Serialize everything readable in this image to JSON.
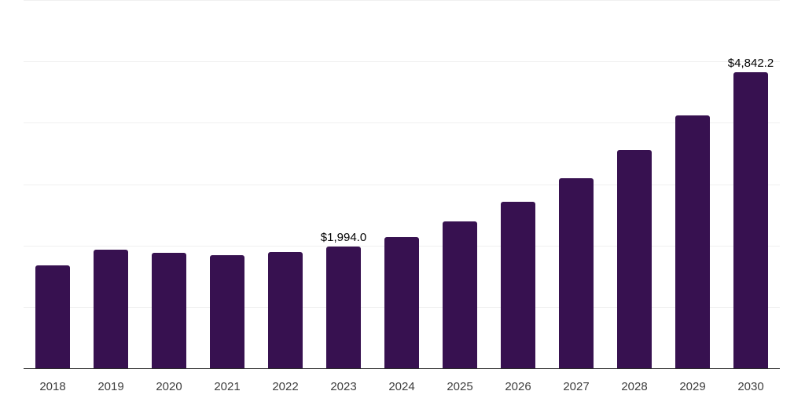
{
  "chart_data": {
    "type": "bar",
    "title": "",
    "xlabel": "",
    "ylabel": "",
    "categories": [
      "2018",
      "2019",
      "2020",
      "2021",
      "2022",
      "2023",
      "2024",
      "2025",
      "2026",
      "2027",
      "2028",
      "2029",
      "2030"
    ],
    "values": [
      1690,
      1945,
      1895,
      1855,
      1905,
      1994.0,
      2150,
      2405,
      2725,
      3110,
      3570,
      4130,
      4842.2
    ],
    "value_labels": {
      "2023": "$1,994.0",
      "2030": "$4,842.2"
    },
    "ylim": [
      0,
      6000
    ],
    "gridline_step": 1000,
    "grid": "horizontal",
    "legend": "none",
    "colors": {
      "bar": "#371150",
      "axis_line": "#2b2b2b",
      "gridline": "#f0f0f0",
      "value_label": "#000000",
      "tick_label": "#3d3d3d",
      "background": "#ffffff"
    }
  }
}
